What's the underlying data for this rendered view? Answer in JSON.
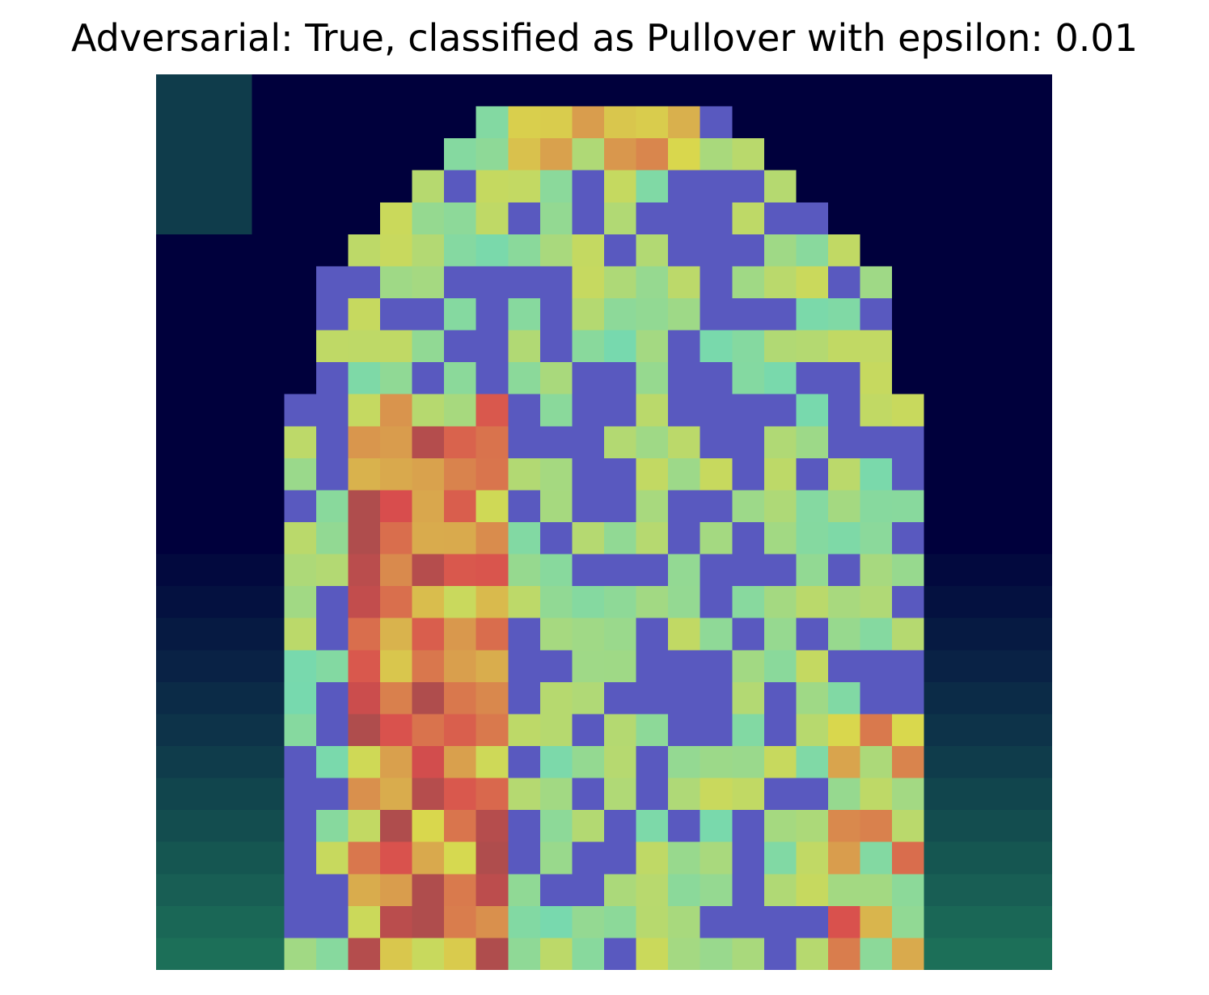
{
  "figure": {
    "title": "Adversarial: True, classified as Pullover with epsilon: 0.01"
  }
}
